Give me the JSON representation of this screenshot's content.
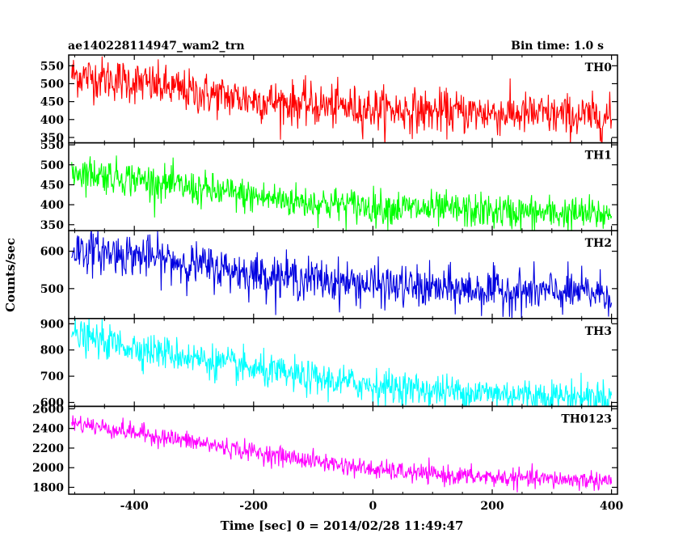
{
  "chart_data": {
    "type": "line",
    "title": "ae140228114947_wam2_trn",
    "bin_time_label": "Bin time: 1.0 s",
    "xlabel": "Time [sec] 0 = 2014/02/28 11:49:47",
    "ylabel": "Counts/sec",
    "xlim": [
      -510,
      410
    ],
    "x_ticks": [
      -400,
      -200,
      0,
      200,
      400
    ],
    "bin_width": 1.0,
    "series": [
      {
        "name": "TH0",
        "color": "#ff0000",
        "ylim": [
          335,
          580
        ],
        "y_ticks": [
          350,
          400,
          450,
          500,
          550
        ],
        "trend_x": [
          -505,
          -400,
          -300,
          -200,
          -100,
          0,
          100,
          200,
          300,
          400
        ],
        "trend_y": [
          525,
          505,
          475,
          455,
          440,
          430,
          422,
          418,
          412,
          405
        ],
        "noise_sigma": 30
      },
      {
        "name": "TH1",
        "color": "#00ff00",
        "ylim": [
          335,
          555
        ],
        "y_ticks": [
          350,
          400,
          450,
          500,
          550
        ],
        "trend_x": [
          -505,
          -400,
          -300,
          -200,
          -100,
          0,
          100,
          200,
          300,
          400
        ],
        "trend_y": [
          485,
          465,
          440,
          420,
          405,
          395,
          388,
          383,
          378,
          375
        ],
        "noise_sigma": 22
      },
      {
        "name": "TH2",
        "color": "#0000e0",
        "ylim": [
          420,
          655
        ],
        "y_ticks": [
          500,
          600
        ],
        "trend_x": [
          -505,
          -400,
          -300,
          -200,
          -100,
          0,
          100,
          200,
          300,
          400
        ],
        "trend_y": [
          605,
          590,
          565,
          540,
          525,
          510,
          500,
          495,
          490,
          488
        ],
        "noise_sigma": 28
      },
      {
        "name": "TH3",
        "color": "#00ffff",
        "ylim": [
          585,
          920
        ],
        "y_ticks": [
          600,
          700,
          800,
          900
        ],
        "trend_x": [
          -505,
          -400,
          -300,
          -200,
          -100,
          0,
          100,
          200,
          300,
          400
        ],
        "trend_y": [
          855,
          810,
          770,
          725,
          690,
          665,
          645,
          635,
          625,
          620
        ],
        "noise_sigma": 32
      },
      {
        "name": "TH0123",
        "color": "#ff00ff",
        "ylim": [
          1730,
          2625
        ],
        "y_ticks": [
          1800,
          2000,
          2200,
          2400,
          2600
        ],
        "trend_x": [
          -505,
          -400,
          -300,
          -200,
          -100,
          0,
          100,
          200,
          300,
          400
        ],
        "trend_y": [
          2460,
          2360,
          2260,
          2160,
          2070,
          1980,
          1930,
          1900,
          1880,
          1870
        ],
        "noise_sigma": 48
      }
    ]
  }
}
